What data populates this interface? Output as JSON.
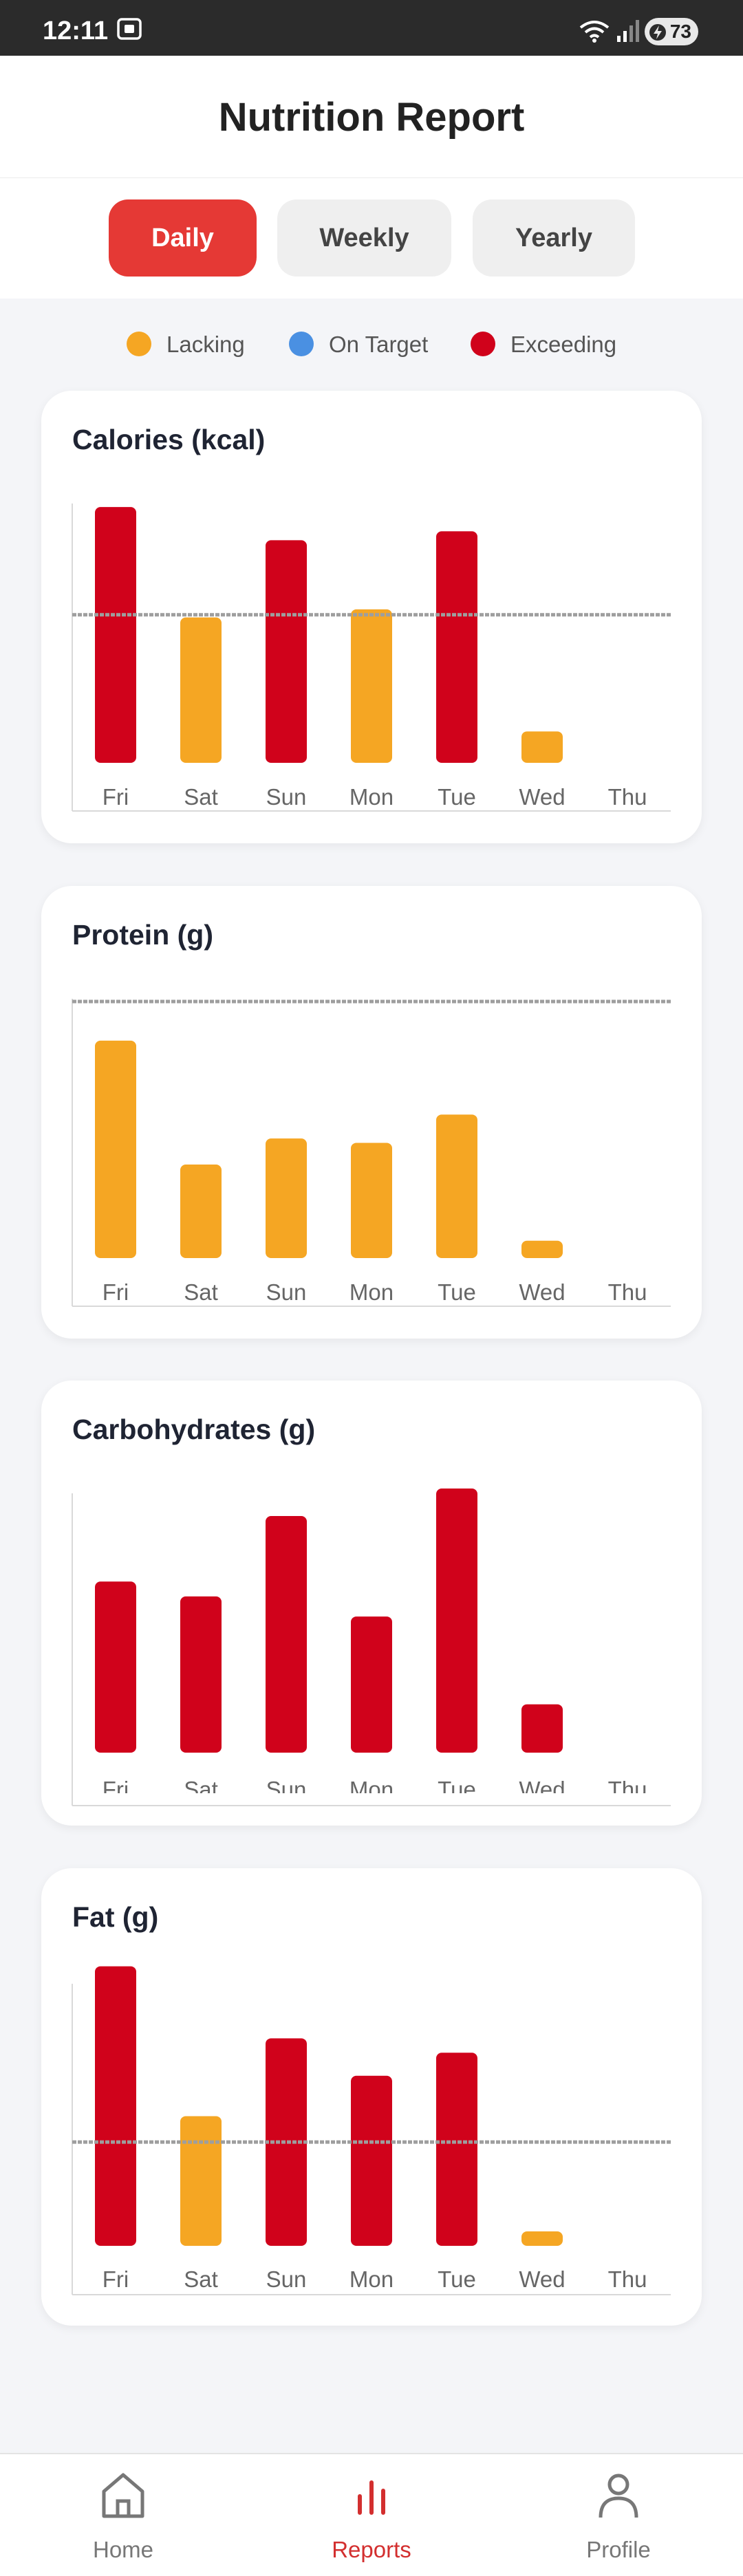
{
  "status_bar": {
    "time": "12:11",
    "battery": "73"
  },
  "header": {
    "title": "Nutrition Report"
  },
  "tabs": [
    {
      "label": "Daily",
      "active": true
    },
    {
      "label": "Weekly",
      "active": false
    },
    {
      "label": "Yearly",
      "active": false
    }
  ],
  "legend": [
    {
      "label": "Lacking",
      "color": "#f5a623"
    },
    {
      "label": "On Target",
      "color": "#4a90e2"
    },
    {
      "label": "Exceeding",
      "color": "#d0021b"
    }
  ],
  "colors": {
    "lacking": "#f5a623",
    "on_target": "#4a90e2",
    "exceeding": "#d0021b",
    "accent": "#e53935"
  },
  "chart_data": [
    {
      "type": "bar",
      "title": "Calories (kcal)",
      "categories": [
        "Fri",
        "Sat",
        "Sun",
        "Mon",
        "Tue",
        "Wed",
        "Thu"
      ],
      "values": [
        2850,
        1620,
        2480,
        1710,
        2580,
        350,
        0
      ],
      "status": [
        "exceeding",
        "lacking",
        "exceeding",
        "lacking",
        "exceeding",
        "lacking",
        "none"
      ],
      "target": 1650,
      "ylim": [
        0,
        3150
      ]
    },
    {
      "type": "bar",
      "title": "Protein (g)",
      "categories": [
        "Fri",
        "Sat",
        "Sun",
        "Mon",
        "Tue",
        "Wed",
        "Thu"
      ],
      "values": [
        100,
        43,
        55,
        53,
        66,
        8,
        0
      ],
      "status": [
        "lacking",
        "lacking",
        "lacking",
        "lacking",
        "lacking",
        "lacking",
        "none"
      ],
      "target": 118,
      "ylim": [
        0,
        130
      ]
    },
    {
      "type": "bar",
      "title": "Carbohydrates (g)",
      "categories": [
        "Fri",
        "Sat",
        "Sun",
        "Mon",
        "Tue",
        "Wed",
        "Thu"
      ],
      "values": [
        230,
        210,
        318,
        183,
        355,
        65,
        0
      ],
      "status": [
        "exceeding",
        "exceeding",
        "exceeding",
        "exceeding",
        "exceeding",
        "exceeding",
        "none"
      ],
      "target": null,
      "ylim": [
        0,
        380
      ]
    },
    {
      "type": "bar",
      "title": "Fat (g)",
      "categories": [
        "Fri",
        "Sat",
        "Sun",
        "Mon",
        "Tue",
        "Wed",
        "Thu"
      ],
      "values": [
        97,
        45,
        72,
        59,
        67,
        5,
        0
      ],
      "status": [
        "exceeding",
        "lacking",
        "exceeding",
        "exceeding",
        "exceeding",
        "lacking",
        "none"
      ],
      "target": 36,
      "ylim": [
        0,
        100
      ]
    }
  ],
  "bottom_nav": [
    {
      "label": "Home",
      "icon": "home-icon",
      "active": false
    },
    {
      "label": "Reports",
      "icon": "bar-chart-icon",
      "active": true
    },
    {
      "label": "Profile",
      "icon": "person-icon",
      "active": false
    }
  ]
}
